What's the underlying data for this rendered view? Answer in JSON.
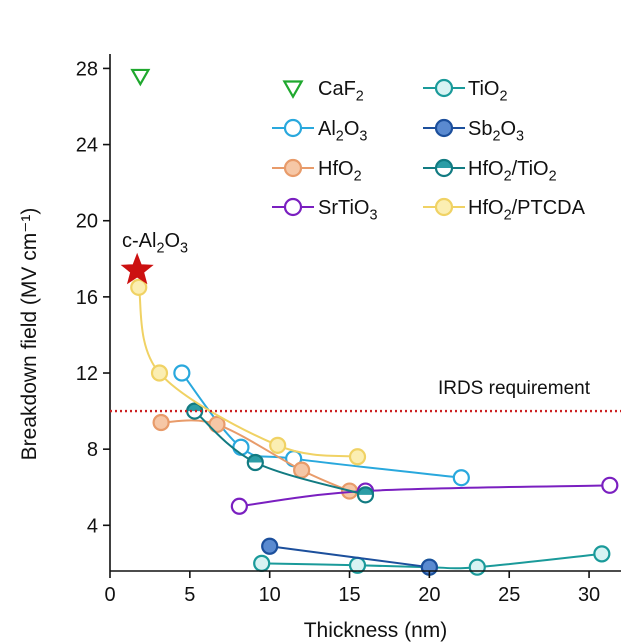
{
  "chart_data": {
    "type": "scatter",
    "xlabel": "Thickness (nm)",
    "ylabel": "Breakdown field (MV cm⁻¹)",
    "xlim": [
      0,
      32
    ],
    "ylim": [
      1.6,
      28.6
    ],
    "x_ticks": [
      0,
      5,
      10,
      15,
      20,
      25,
      30
    ],
    "y_ticks": [
      4,
      8,
      12,
      16,
      20,
      24,
      28
    ],
    "x_tick_labels": [
      "0",
      "5",
      "10",
      "15",
      "20",
      "25",
      "30"
    ],
    "y_tick_labels": [
      "4",
      "8",
      "12",
      "16",
      "20",
      "24",
      "28"
    ],
    "grid": false,
    "legend": {
      "placement": "top-right",
      "columns": 2
    },
    "series": [
      {
        "name": "CaF2",
        "label_parts": [
          [
            "CaF",
            ""
          ],
          [
            "2",
            "sub"
          ]
        ],
        "color": "#1fa82e",
        "marker": "triangle-down",
        "line": false,
        "x": [
          1.9
        ],
        "y": [
          27.6
        ]
      },
      {
        "name": "Al2O3",
        "label_parts": [
          [
            "Al",
            ""
          ],
          [
            "2",
            "sub"
          ],
          [
            "O",
            ""
          ],
          [
            "3",
            "sub"
          ]
        ],
        "color": "#29a8dd",
        "marker": "circle-open",
        "line": true,
        "x": [
          4.5,
          8.2,
          11.5,
          22.0
        ],
        "y": [
          12.0,
          8.1,
          7.5,
          6.5
        ]
      },
      {
        "name": "HfO2",
        "label_parts": [
          [
            "HfO",
            ""
          ],
          [
            "2",
            "sub"
          ]
        ],
        "color": "#e89b6a",
        "fill": "#f6c7a6",
        "marker": "circle-filled",
        "line": true,
        "x": [
          3.2,
          6.7,
          12.0,
          15.0
        ],
        "y": [
          9.4,
          9.3,
          6.9,
          5.8
        ]
      },
      {
        "name": "SrTiO3",
        "label_parts": [
          [
            "SrTiO",
            ""
          ],
          [
            "3",
            "sub"
          ]
        ],
        "color": "#7a1fc0",
        "marker": "circle-open",
        "line": true,
        "x": [
          8.1,
          16.0,
          31.3
        ],
        "y": [
          5.0,
          5.8,
          6.1
        ]
      },
      {
        "name": "TiO2",
        "label_parts": [
          [
            "TiO",
            ""
          ],
          [
            "2",
            "sub"
          ]
        ],
        "color": "#1a9a9a",
        "fill": "#d8f3f3",
        "marker": "circle-open",
        "line": true,
        "x": [
          9.5,
          15.5,
          20.0,
          23.0,
          30.8
        ],
        "y": [
          2.0,
          1.9,
          1.8,
          1.8,
          2.5
        ]
      },
      {
        "name": "Sb2O3",
        "label_parts": [
          [
            "Sb",
            ""
          ],
          [
            "2",
            "sub"
          ],
          [
            "O",
            ""
          ],
          [
            "3",
            "sub"
          ]
        ],
        "color": "#1c4f9c",
        "fill": "#5a8ad0",
        "marker": "circle-filled",
        "line": true,
        "x": [
          10.0,
          20.0
        ],
        "y": [
          2.9,
          1.8
        ]
      },
      {
        "name": "HfO2/TiO2",
        "label_parts": [
          [
            "HfO",
            ""
          ],
          [
            "2",
            "sub"
          ],
          [
            "/TiO",
            ""
          ],
          [
            "2",
            "sub"
          ]
        ],
        "color": "#127b82",
        "fill": "#2c9da6",
        "marker": "circle-half",
        "line": true,
        "x": [
          5.3,
          9.1,
          16.0
        ],
        "y": [
          10.0,
          7.3,
          5.6
        ]
      },
      {
        "name": "HfO2/PTCDA",
        "label_parts": [
          [
            "HfO",
            ""
          ],
          [
            "2",
            "sub"
          ],
          [
            "/PTCDA",
            ""
          ]
        ],
        "color": "#f0d264",
        "fill": "#fbeeb2",
        "marker": "circle-filled",
        "line": true,
        "x": [
          1.8,
          3.1,
          10.5,
          15.5
        ],
        "y": [
          16.5,
          12.0,
          8.2,
          7.6
        ]
      }
    ],
    "annotations": [
      {
        "id": "c-al2o3",
        "text_parts": [
          [
            "c-Al",
            ""
          ],
          [
            "2",
            "sub"
          ],
          [
            "O",
            ""
          ],
          [
            "3",
            "sub"
          ]
        ],
        "x": 1.7,
        "y": 17.4,
        "marker": "star",
        "color": "#cc1111"
      },
      {
        "id": "irds",
        "text": "IRDS requirement",
        "y": 10.0,
        "line_style": "dotted",
        "color": "#cc2222"
      }
    ]
  }
}
